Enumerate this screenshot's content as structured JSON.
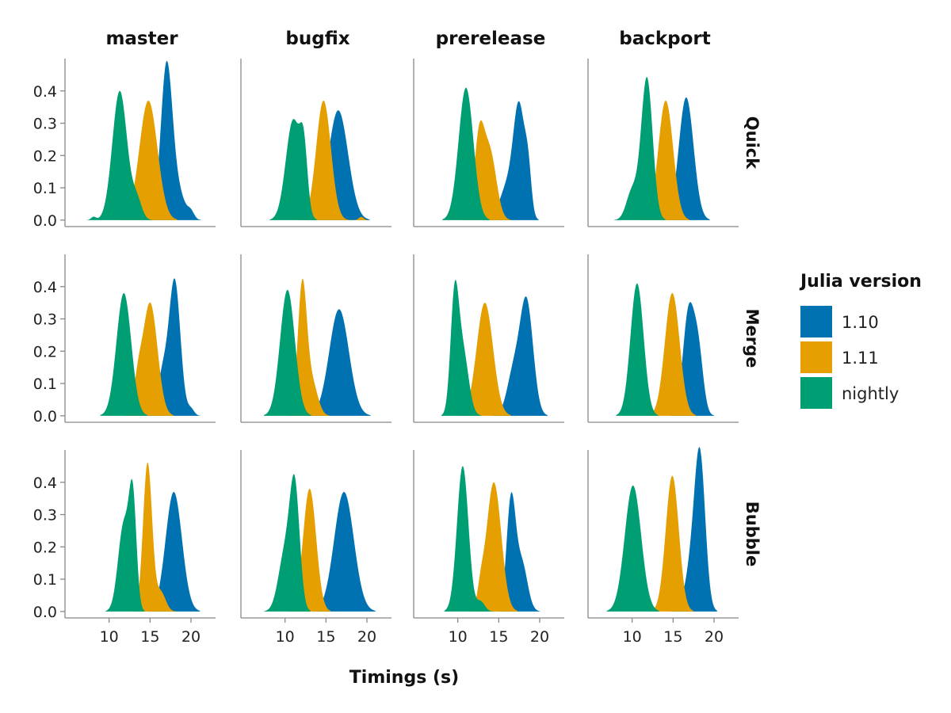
{
  "chart_data": {
    "type": "area",
    "subtype": "density facet grid",
    "xlabel": "Timings (s)",
    "columns": [
      "master",
      "bugfix",
      "prerelease",
      "backport"
    ],
    "rows": [
      "Quick",
      "Merge",
      "Bubble"
    ],
    "x_ticks": [
      10,
      15,
      20
    ],
    "y_ticks": [
      0.0,
      0.1,
      0.2,
      0.3,
      0.4
    ],
    "y_tick_labels": [
      "0.0",
      "0.1",
      "0.2",
      "0.3",
      "0.4"
    ],
    "xlim": [
      5.0,
      23.0
    ],
    "ylim": [
      -0.02,
      0.5
    ],
    "legend": {
      "title": "Julia version",
      "position": "right",
      "entries": [
        {
          "label": "1.10",
          "color": "#0072B2"
        },
        {
          "label": "1.11",
          "color": "#E69F00"
        },
        {
          "label": "nightly",
          "color": "#009E73"
        }
      ]
    },
    "series_order": [
      "1.10",
      "1.11",
      "nightly"
    ],
    "series_colors": {
      "1.10": "#0072B2",
      "1.11": "#E69F00",
      "nightly": "#009E73"
    },
    "panels": [
      {
        "row": "Quick",
        "col": "master",
        "series": [
          {
            "name": "1.10",
            "peaks": [
              {
                "mu": 17.0,
                "sd": 0.7,
                "h": 0.46
              },
              {
                "mu": 18.3,
                "sd": 0.9,
                "h": 0.09
              },
              {
                "mu": 20.0,
                "sd": 0.4,
                "h": 0.02
              }
            ]
          },
          {
            "name": "1.11",
            "peaks": [
              {
                "mu": 14.8,
                "sd": 1.1,
                "h": 0.37
              }
            ]
          },
          {
            "name": "nightly",
            "peaks": [
              {
                "mu": 11.3,
                "sd": 0.9,
                "h": 0.4
              },
              {
                "mu": 13.4,
                "sd": 0.6,
                "h": 0.06
              },
              {
                "mu": 8.1,
                "sd": 0.3,
                "h": 0.01
              }
            ]
          }
        ]
      },
      {
        "row": "Quick",
        "col": "bugfix",
        "series": [
          {
            "name": "1.10",
            "peaks": [
              {
                "mu": 16.5,
                "sd": 1.2,
                "h": 0.34
              }
            ]
          },
          {
            "name": "1.11",
            "peaks": [
              {
                "mu": 14.7,
                "sd": 0.9,
                "h": 0.37
              },
              {
                "mu": 19.3,
                "sd": 0.3,
                "h": 0.01
              }
            ]
          },
          {
            "name": "nightly",
            "peaks": [
              {
                "mu": 11.0,
                "sd": 0.9,
                "h": 0.31
              },
              {
                "mu": 12.3,
                "sd": 0.45,
                "h": 0.17
              }
            ]
          }
        ]
      },
      {
        "row": "Quick",
        "col": "prerelease",
        "series": [
          {
            "name": "1.10",
            "peaks": [
              {
                "mu": 17.5,
                "sd": 0.7,
                "h": 0.34
              },
              {
                "mu": 18.6,
                "sd": 0.4,
                "h": 0.12
              },
              {
                "mu": 16.0,
                "sd": 0.9,
                "h": 0.1
              }
            ]
          },
          {
            "name": "1.11",
            "peaks": [
              {
                "mu": 12.6,
                "sd": 0.6,
                "h": 0.24
              },
              {
                "mu": 13.9,
                "sd": 0.8,
                "h": 0.21
              }
            ]
          },
          {
            "name": "nightly",
            "peaks": [
              {
                "mu": 11.0,
                "sd": 0.9,
                "h": 0.41
              }
            ]
          }
        ]
      },
      {
        "row": "Quick",
        "col": "backport",
        "series": [
          {
            "name": "1.10",
            "peaks": [
              {
                "mu": 16.6,
                "sd": 0.9,
                "h": 0.38
              }
            ]
          },
          {
            "name": "1.11",
            "peaks": [
              {
                "mu": 14.1,
                "sd": 0.9,
                "h": 0.37
              }
            ]
          },
          {
            "name": "nightly",
            "peaks": [
              {
                "mu": 11.8,
                "sd": 0.7,
                "h": 0.44
              },
              {
                "mu": 10.0,
                "sd": 0.7,
                "h": 0.09
              }
            ]
          }
        ]
      },
      {
        "row": "Merge",
        "col": "master",
        "series": [
          {
            "name": "1.10",
            "peaks": [
              {
                "mu": 18.0,
                "sd": 0.7,
                "h": 0.42
              },
              {
                "mu": 16.5,
                "sd": 0.6,
                "h": 0.12
              },
              {
                "mu": 20.0,
                "sd": 0.4,
                "h": 0.02
              }
            ]
          },
          {
            "name": "1.11",
            "peaks": [
              {
                "mu": 15.0,
                "sd": 0.9,
                "h": 0.35
              },
              {
                "mu": 13.5,
                "sd": 0.5,
                "h": 0.08
              }
            ]
          },
          {
            "name": "nightly",
            "peaks": [
              {
                "mu": 11.8,
                "sd": 0.9,
                "h": 0.38
              }
            ]
          }
        ]
      },
      {
        "row": "Merge",
        "col": "bugfix",
        "series": [
          {
            "name": "1.10",
            "peaks": [
              {
                "mu": 16.6,
                "sd": 1.2,
                "h": 0.33
              }
            ]
          },
          {
            "name": "1.11",
            "peaks": [
              {
                "mu": 12.1,
                "sd": 0.55,
                "h": 0.4
              },
              {
                "mu": 13.3,
                "sd": 0.7,
                "h": 0.1
              }
            ]
          },
          {
            "name": "nightly",
            "peaks": [
              {
                "mu": 10.3,
                "sd": 0.9,
                "h": 0.39
              }
            ]
          }
        ]
      },
      {
        "row": "Merge",
        "col": "prerelease",
        "series": [
          {
            "name": "1.10",
            "peaks": [
              {
                "mu": 18.4,
                "sd": 0.8,
                "h": 0.35
              },
              {
                "mu": 16.8,
                "sd": 0.8,
                "h": 0.13
              }
            ]
          },
          {
            "name": "1.11",
            "peaks": [
              {
                "mu": 13.3,
                "sd": 1.0,
                "h": 0.35
              }
            ]
          },
          {
            "name": "nightly",
            "peaks": [
              {
                "mu": 9.6,
                "sd": 0.5,
                "h": 0.34
              },
              {
                "mu": 10.6,
                "sd": 0.7,
                "h": 0.2
              }
            ]
          }
        ]
      },
      {
        "row": "Merge",
        "col": "backport",
        "series": [
          {
            "name": "1.10",
            "peaks": [
              {
                "mu": 16.9,
                "sd": 0.7,
                "h": 0.32
              },
              {
                "mu": 18.1,
                "sd": 0.6,
                "h": 0.18
              }
            ]
          },
          {
            "name": "1.11",
            "peaks": [
              {
                "mu": 14.9,
                "sd": 0.9,
                "h": 0.38
              }
            ]
          },
          {
            "name": "nightly",
            "peaks": [
              {
                "mu": 10.6,
                "sd": 0.8,
                "h": 0.41
              }
            ]
          }
        ]
      },
      {
        "row": "Bubble",
        "col": "master",
        "series": [
          {
            "name": "1.10",
            "peaks": [
              {
                "mu": 17.9,
                "sd": 1.0,
                "h": 0.37
              }
            ]
          },
          {
            "name": "1.11",
            "peaks": [
              {
                "mu": 14.7,
                "sd": 0.55,
                "h": 0.46
              },
              {
                "mu": 16.3,
                "sd": 0.6,
                "h": 0.06
              }
            ]
          },
          {
            "name": "nightly",
            "peaks": [
              {
                "mu": 12.9,
                "sd": 0.45,
                "h": 0.32
              },
              {
                "mu": 11.8,
                "sd": 0.7,
                "h": 0.27
              }
            ]
          }
        ]
      },
      {
        "row": "Bubble",
        "col": "bugfix",
        "series": [
          {
            "name": "1.10",
            "peaks": [
              {
                "mu": 17.2,
                "sd": 1.2,
                "h": 0.37
              }
            ]
          },
          {
            "name": "1.11",
            "peaks": [
              {
                "mu": 13.0,
                "sd": 0.8,
                "h": 0.38
              }
            ]
          },
          {
            "name": "nightly",
            "peaks": [
              {
                "mu": 11.2,
                "sd": 0.6,
                "h": 0.36
              },
              {
                "mu": 10.0,
                "sd": 0.8,
                "h": 0.18
              }
            ]
          }
        ]
      },
      {
        "row": "Bubble",
        "col": "prerelease",
        "series": [
          {
            "name": "1.10",
            "peaks": [
              {
                "mu": 16.5,
                "sd": 0.55,
                "h": 0.34
              },
              {
                "mu": 17.8,
                "sd": 0.7,
                "h": 0.15
              }
            ]
          },
          {
            "name": "1.11",
            "peaks": [
              {
                "mu": 14.4,
                "sd": 0.9,
                "h": 0.4
              },
              {
                "mu": 12.8,
                "sd": 0.4,
                "h": 0.05
              }
            ]
          },
          {
            "name": "nightly",
            "peaks": [
              {
                "mu": 10.6,
                "sd": 0.7,
                "h": 0.45
              },
              {
                "mu": 12.8,
                "sd": 0.5,
                "h": 0.03
              }
            ]
          }
        ]
      },
      {
        "row": "Bubble",
        "col": "backport",
        "series": [
          {
            "name": "1.10",
            "peaks": [
              {
                "mu": 18.3,
                "sd": 0.65,
                "h": 0.44
              },
              {
                "mu": 17.3,
                "sd": 0.8,
                "h": 0.14
              }
            ]
          },
          {
            "name": "1.11",
            "peaks": [
              {
                "mu": 14.9,
                "sd": 0.8,
                "h": 0.42
              }
            ]
          },
          {
            "name": "nightly",
            "peaks": [
              {
                "mu": 10.1,
                "sd": 1.0,
                "h": 0.39
              }
            ]
          }
        ]
      }
    ]
  }
}
